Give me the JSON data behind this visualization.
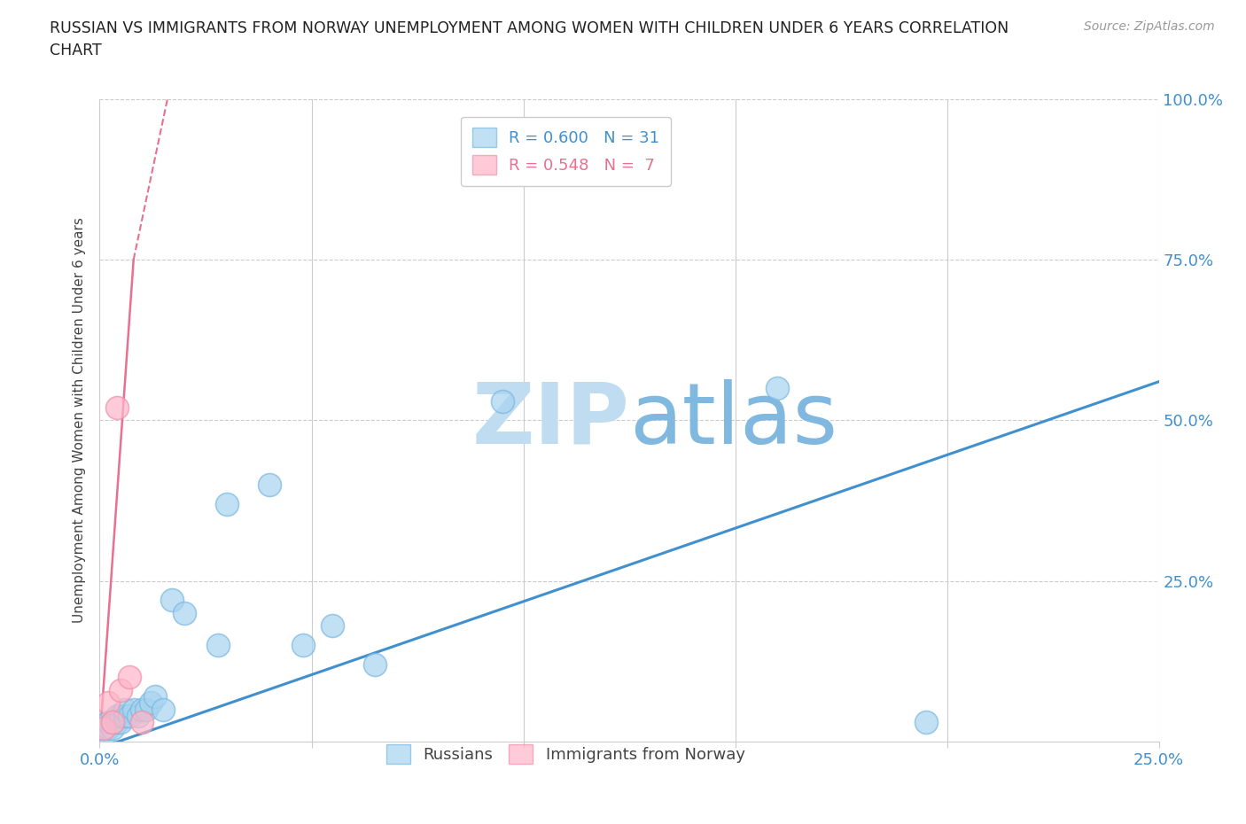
{
  "title_line1": "RUSSIAN VS IMMIGRANTS FROM NORWAY UNEMPLOYMENT AMONG WOMEN WITH CHILDREN UNDER 6 YEARS CORRELATION",
  "title_line2": "CHART",
  "source": "Source: ZipAtlas.com",
  "ylabel": "Unemployment Among Women with Children Under 6 years",
  "xlim": [
    0.0,
    0.25
  ],
  "ylim": [
    0.0,
    1.0
  ],
  "blue_color": "#a8d4f0",
  "blue_edge": "#7ab8e0",
  "pink_color": "#ffb6c8",
  "pink_edge": "#f090a8",
  "line_blue": "#4090d0",
  "line_pink": "#e87090",
  "legend_R_blue": "0.600",
  "legend_N_blue": "31",
  "legend_R_pink": "0.548",
  "legend_N_pink": " 7",
  "watermark_zip": "ZIP",
  "watermark_atlas": "atlas",
  "watermark_color": "#c8e4f8",
  "background_color": "#ffffff",
  "grid_color": "#cccccc",
  "tick_color": "#4090d0",
  "russians_x": [
    0.001,
    0.001,
    0.002,
    0.002,
    0.003,
    0.003,
    0.004,
    0.004,
    0.005,
    0.005,
    0.006,
    0.006,
    0.007,
    0.008,
    0.009,
    0.01,
    0.011,
    0.012,
    0.013,
    0.015,
    0.017,
    0.02,
    0.028,
    0.03,
    0.04,
    0.048,
    0.055,
    0.065,
    0.095,
    0.16,
    0.195
  ],
  "russians_y": [
    0.01,
    0.02,
    0.02,
    0.03,
    0.02,
    0.03,
    0.03,
    0.04,
    0.03,
    0.04,
    0.04,
    0.05,
    0.04,
    0.05,
    0.04,
    0.05,
    0.05,
    0.06,
    0.07,
    0.05,
    0.22,
    0.2,
    0.15,
    0.37,
    0.4,
    0.15,
    0.18,
    0.12,
    0.53,
    0.55,
    0.03
  ],
  "norway_x": [
    0.001,
    0.002,
    0.003,
    0.004,
    0.005,
    0.007,
    0.01
  ],
  "norway_y": [
    0.02,
    0.06,
    0.03,
    0.52,
    0.08,
    0.1,
    0.03
  ],
  "blue_line_x0": 0.0,
  "blue_line_y0": -0.01,
  "blue_line_x1": 0.25,
  "blue_line_y1": 0.56,
  "pink_line_solid_x0": 0.0,
  "pink_line_solid_y0": 0.0,
  "pink_line_solid_x1": 0.008,
  "pink_line_solid_y1": 0.75,
  "pink_line_dash_x0": 0.008,
  "pink_line_dash_y0": 0.75,
  "pink_line_dash_x1": 0.016,
  "pink_line_dash_y1": 1.0
}
